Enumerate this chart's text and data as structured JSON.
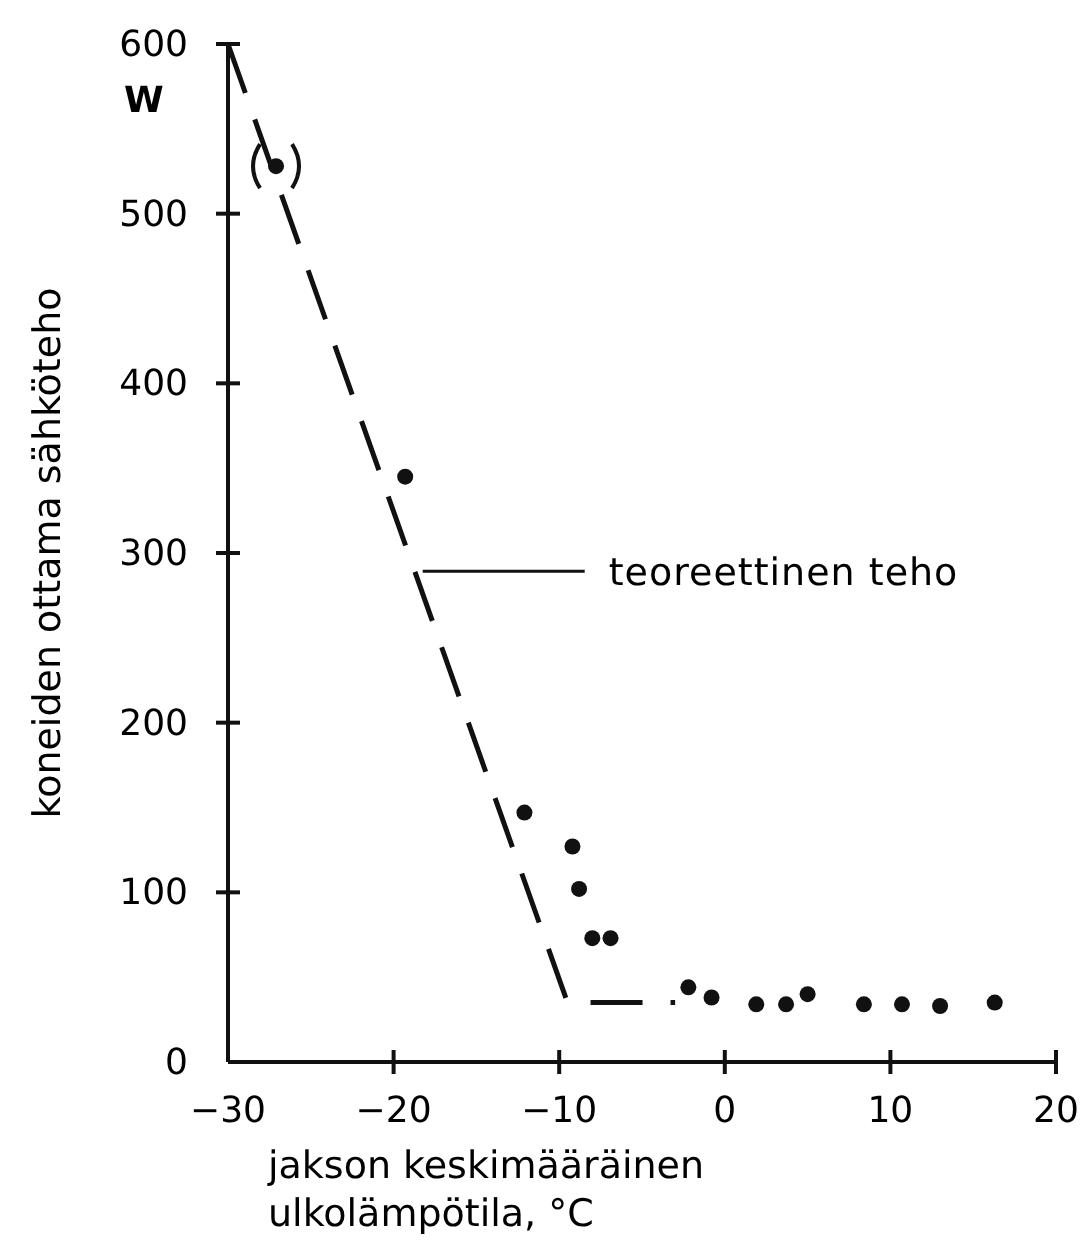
{
  "chart_data": {
    "type": "scatter",
    "xlabel": "jakson keskimääräinen\nulkolämpötila, °C",
    "ylabel": "koneiden ottama sähköteho",
    "xlim": [
      -30,
      20
    ],
    "xticks": [
      -30,
      -20,
      -10,
      0,
      10,
      20
    ],
    "ylim": [
      0,
      600
    ],
    "yticks": [
      0,
      100,
      200,
      300,
      400,
      500,
      600
    ],
    "marker": "circle",
    "grid": false,
    "series": [
      {
        "color": "#111111",
        "x": [
          -27.1,
          -19.3,
          -12.1,
          -9.2,
          -8.8,
          -8.0,
          -6.9,
          -2.2,
          -0.8,
          1.9,
          3.7,
          5.0,
          8.4,
          10.7,
          13.0,
          16.3
        ],
        "values": [
          528,
          345,
          147,
          127,
          102,
          73,
          73,
          44,
          38,
          34,
          34,
          40,
          34,
          34,
          33,
          35
        ]
      },
      {
        "type": "line",
        "name": "teoreettinen teho",
        "marker": "none",
        "line_style": "dashed",
        "color": "#111111",
        "x": [
          -30,
          -9.5,
          -3
        ],
        "values": [
          600,
          35,
          35
        ]
      }
    ],
    "annotations": [
      "W"
    ]
  }
}
